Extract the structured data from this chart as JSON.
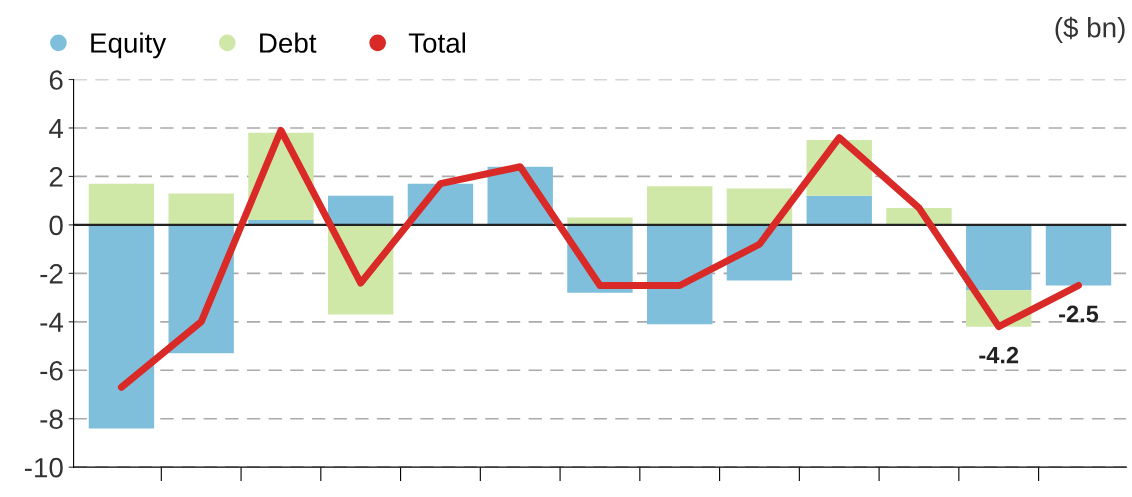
{
  "chart_data": {
    "type": "bar",
    "stacked": true,
    "categories": [
      null,
      null,
      null,
      null,
      null,
      null,
      null,
      null,
      null,
      null,
      null,
      null,
      null
    ],
    "series": [
      {
        "name": "Equity",
        "color": "#7fbfdc",
        "values": [
          -8.4,
          -5.3,
          0.2,
          1.2,
          1.7,
          2.4,
          -2.8,
          -4.1,
          -2.3,
          1.2,
          0,
          -2.7,
          -2.5
        ]
      },
      {
        "name": "Debt",
        "color": "#cfe8a8",
        "values": [
          1.7,
          1.3,
          3.6,
          -3.7,
          0,
          0,
          0.3,
          1.6,
          1.5,
          2.3,
          0.7,
          -1.5,
          0
        ]
      },
      {
        "name": "Total",
        "type": "line",
        "color": "#d92a27",
        "values": [
          -6.7,
          -4.0,
          3.9,
          -2.4,
          1.7,
          2.4,
          -2.5,
          -2.5,
          -0.8,
          3.6,
          0.7,
          -4.2,
          -2.5
        ],
        "value_labels": [
          null,
          null,
          null,
          null,
          null,
          null,
          null,
          null,
          null,
          null,
          null,
          "-4.2",
          "-2.5"
        ]
      }
    ],
    "ylim": [
      -10,
      6
    ],
    "yticks": [
      -10,
      -8,
      -6,
      -4,
      -2,
      0,
      2,
      4,
      6
    ],
    "grid": "y",
    "legend": "top left",
    "marker": "none",
    "line_style": "solid",
    "annotations": [
      "($ bn)"
    ]
  }
}
